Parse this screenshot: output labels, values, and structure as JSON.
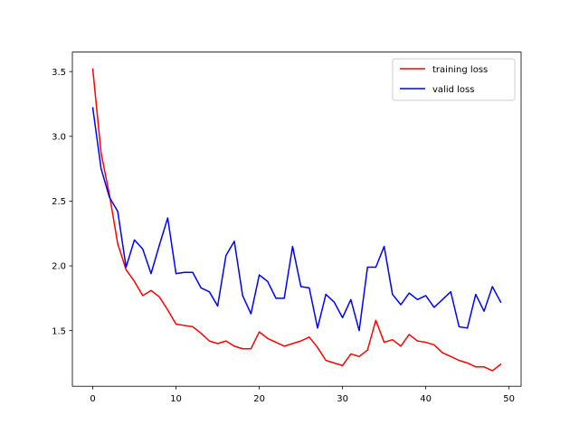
{
  "chart_data": {
    "type": "line",
    "title": "",
    "xlabel": "",
    "ylabel": "",
    "xlim": [
      -2.45,
      51.45
    ],
    "ylim": [
      1.0705,
      3.6505
    ],
    "xticks": [
      0,
      10,
      20,
      30,
      40,
      50
    ],
    "yticks": [
      1.5,
      2.0,
      2.5,
      3.0,
      3.5
    ],
    "xtick_labels": [
      "0",
      "10",
      "20",
      "30",
      "40",
      "50"
    ],
    "ytick_labels": [
      "1.5",
      "2.0",
      "2.5",
      "3.0",
      "3.5"
    ],
    "grid": false,
    "legend_position": "top-right",
    "x": [
      0,
      1,
      2,
      3,
      4,
      5,
      6,
      7,
      8,
      9,
      10,
      11,
      12,
      13,
      14,
      15,
      16,
      17,
      18,
      19,
      20,
      21,
      22,
      23,
      24,
      25,
      26,
      27,
      28,
      29,
      30,
      31,
      32,
      33,
      34,
      35,
      36,
      37,
      38,
      39,
      40,
      41,
      42,
      43,
      44,
      45,
      46,
      47,
      48,
      49
    ],
    "series": [
      {
        "name": "training loss",
        "color": "#ff0000",
        "values": [
          3.52,
          2.87,
          2.55,
          2.17,
          1.97,
          1.88,
          1.77,
          1.81,
          1.76,
          1.66,
          1.55,
          1.54,
          1.53,
          1.48,
          1.42,
          1.4,
          1.42,
          1.38,
          1.36,
          1.36,
          1.49,
          1.44,
          1.41,
          1.38,
          1.4,
          1.42,
          1.45,
          1.37,
          1.27,
          1.25,
          1.23,
          1.32,
          1.3,
          1.35,
          1.58,
          1.41,
          1.43,
          1.38,
          1.47,
          1.42,
          1.41,
          1.39,
          1.33,
          1.3,
          1.27,
          1.25,
          1.22,
          1.22,
          1.19,
          1.24
        ]
      },
      {
        "name": "valid loss",
        "color": "#0000ff",
        "values": [
          3.22,
          2.75,
          2.53,
          2.42,
          1.99,
          2.2,
          2.13,
          1.94,
          2.16,
          2.37,
          1.94,
          1.95,
          1.95,
          1.83,
          1.8,
          1.69,
          2.08,
          2.19,
          1.77,
          1.63,
          1.93,
          1.88,
          1.75,
          1.75,
          2.15,
          1.84,
          1.83,
          1.52,
          1.78,
          1.72,
          1.6,
          1.74,
          1.5,
          1.99,
          1.99,
          2.15,
          1.78,
          1.7,
          1.79,
          1.74,
          1.77,
          1.68,
          1.74,
          1.8,
          1.53,
          1.52,
          1.78,
          1.65,
          1.84,
          1.72
        ]
      }
    ]
  }
}
